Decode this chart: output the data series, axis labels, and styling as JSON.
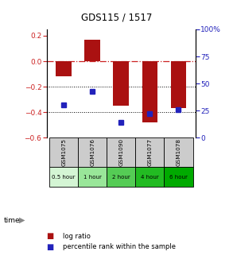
{
  "title": "GDS115 / 1517",
  "samples": [
    "GSM1075",
    "GSM1076",
    "GSM1090",
    "GSM1077",
    "GSM1078"
  ],
  "time_labels": [
    "0.5 hour",
    "1 hour",
    "2 hour",
    "4 hour",
    "6 hour"
  ],
  "time_colors": [
    "#d4f5d4",
    "#99e699",
    "#55cc55",
    "#22bb22",
    "#00aa00"
  ],
  "log_ratios": [
    -0.12,
    0.17,
    -0.35,
    -0.48,
    -0.37
  ],
  "percentile_ranks": [
    30,
    43,
    14,
    22,
    26
  ],
  "bar_color": "#aa1111",
  "dot_color": "#2222bb",
  "ylim_left": [
    -0.6,
    0.25
  ],
  "ylim_right": [
    0,
    100
  ],
  "y_ticks_left": [
    0.2,
    0.0,
    -0.2,
    -0.4,
    -0.6
  ],
  "y_ticks_right": [
    100,
    75,
    50,
    25,
    0
  ],
  "hline_0_color": "#cc2222",
  "hline_grid_color": "#000000",
  "sample_box_color": "#cccccc",
  "background_color": "#ffffff"
}
